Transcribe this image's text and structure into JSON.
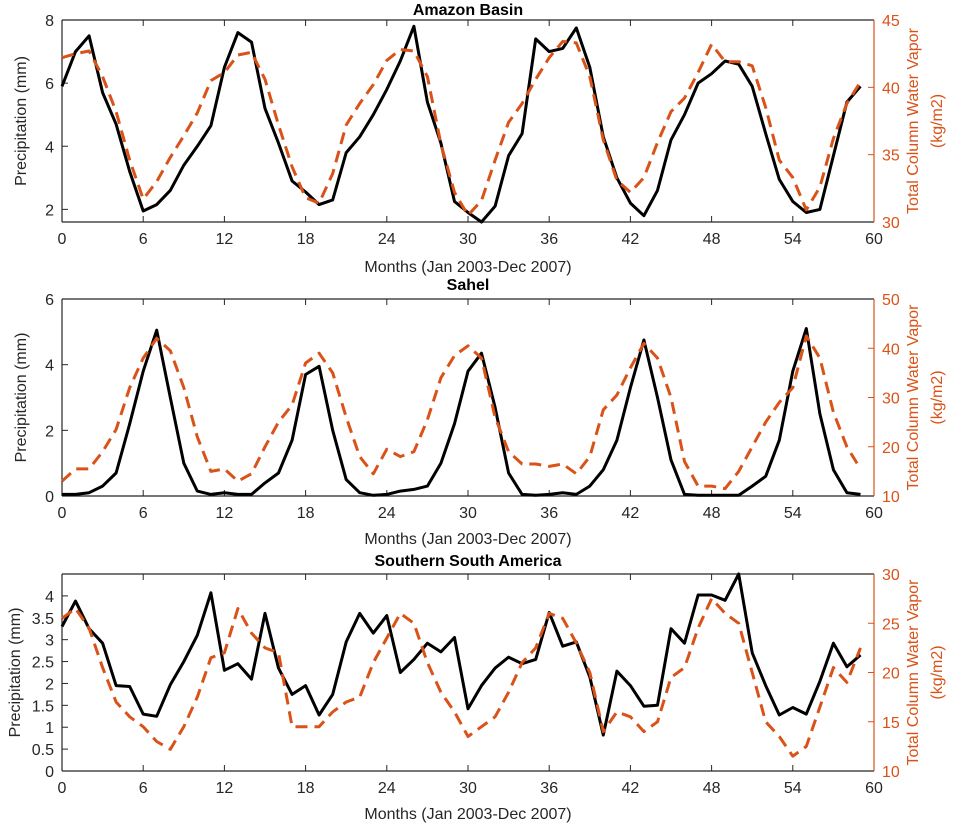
{
  "colors": {
    "precip": "#000000",
    "tcwv": "#d95319",
    "axis": "#262626"
  },
  "chart_data": [
    {
      "type": "line",
      "title": "Amazon Basin",
      "xlabel": "Months (Jan 2003-Dec 2007)",
      "ylabel": "Precipitation (mm)",
      "ylabel_right": [
        "Total Column Water Vapor",
        "(kg/m2)"
      ],
      "xlim": [
        0,
        60
      ],
      "ylim": [
        1.6,
        8
      ],
      "ylim_right": [
        30,
        45
      ],
      "xticks": [
        0,
        6,
        12,
        18,
        24,
        30,
        36,
        42,
        48,
        54,
        60
      ],
      "yticks": [
        2,
        4,
        6,
        8
      ],
      "yticks_right": [
        30,
        35,
        40,
        45
      ],
      "x": [
        0,
        1,
        2,
        3,
        4,
        5,
        6,
        7,
        8,
        9,
        10,
        11,
        12,
        13,
        14,
        15,
        16,
        17,
        18,
        19,
        20,
        21,
        22,
        23,
        24,
        25,
        26,
        27,
        28,
        29,
        30,
        31,
        32,
        33,
        34,
        35,
        36,
        37,
        38,
        39,
        40,
        41,
        42,
        43,
        44,
        45,
        46,
        47,
        48,
        49,
        50,
        51,
        52,
        53,
        54,
        55,
        56,
        57,
        58,
        59
      ],
      "series": [
        {
          "name": "Precipitation (mm)",
          "axis": "left",
          "style": "solid",
          "values": [
            5.9,
            7.0,
            7.5,
            5.7,
            4.7,
            3.2,
            1.95,
            2.15,
            2.6,
            3.4,
            4.0,
            4.65,
            6.5,
            7.6,
            7.3,
            5.2,
            4.1,
            2.9,
            2.55,
            2.15,
            2.3,
            3.8,
            4.3,
            5.0,
            5.8,
            6.7,
            7.8,
            5.4,
            4.1,
            2.25,
            1.9,
            1.6,
            2.1,
            3.7,
            4.4,
            7.4,
            7.0,
            7.1,
            7.75,
            6.5,
            4.3,
            3.0,
            2.2,
            1.8,
            2.6,
            4.2,
            5.0,
            6.0,
            6.3,
            6.7,
            6.6,
            5.9,
            4.4,
            2.95,
            2.25,
            1.9,
            2.0,
            3.7,
            5.4,
            5.9
          ]
        },
        {
          "name": "Total Column Water Vapor (kg/m2)",
          "axis": "right",
          "style": "dashed",
          "values": [
            42.2,
            42.5,
            42.7,
            40.8,
            38.2,
            34.6,
            31.7,
            33.0,
            34.8,
            36.4,
            38.1,
            40.5,
            41.1,
            42.4,
            42.6,
            40.6,
            37.2,
            34.1,
            31.8,
            31.4,
            33.6,
            37.2,
            38.8,
            40.2,
            42.0,
            42.8,
            42.7,
            40.8,
            35.8,
            32.2,
            30.5,
            31.6,
            34.6,
            37.4,
            38.8,
            40.6,
            42.2,
            43.4,
            43.3,
            40.8,
            36.1,
            33.1,
            32.2,
            33.3,
            35.9,
            38.2,
            39.2,
            41.1,
            43.2,
            41.9,
            41.9,
            41.6,
            38.5,
            34.6,
            33.3,
            30.9,
            32.6,
            36.2,
            38.8,
            40.4
          ]
        }
      ]
    },
    {
      "type": "line",
      "title": "Sahel",
      "xlabel": "Months (Jan 2003-Dec 2007)",
      "ylabel": "Precipitation (mm)",
      "ylabel_right": [
        "Total Column Water Vapor",
        "(kg/m2)"
      ],
      "xlim": [
        0,
        60
      ],
      "ylim": [
        0,
        6
      ],
      "ylim_right": [
        10,
        50
      ],
      "xticks": [
        0,
        6,
        12,
        18,
        24,
        30,
        36,
        42,
        48,
        54,
        60
      ],
      "yticks": [
        0,
        2,
        4,
        6
      ],
      "yticks_right": [
        10,
        20,
        30,
        40,
        50
      ],
      "x": [
        0,
        1,
        2,
        3,
        4,
        5,
        6,
        7,
        8,
        9,
        10,
        11,
        12,
        13,
        14,
        15,
        16,
        17,
        18,
        19,
        20,
        21,
        22,
        23,
        24,
        25,
        26,
        27,
        28,
        29,
        30,
        31,
        32,
        33,
        34,
        35,
        36,
        37,
        38,
        39,
        40,
        41,
        42,
        43,
        44,
        45,
        46,
        47,
        48,
        49,
        50,
        51,
        52,
        53,
        54,
        55,
        56,
        57,
        58,
        59
      ],
      "series": [
        {
          "name": "Precipitation (mm)",
          "axis": "left",
          "style": "solid",
          "values": [
            0.05,
            0.05,
            0.1,
            0.3,
            0.7,
            2.2,
            3.8,
            5.05,
            3.0,
            1.0,
            0.15,
            0.05,
            0.1,
            0.05,
            0.05,
            0.4,
            0.7,
            1.7,
            3.7,
            3.95,
            2.0,
            0.5,
            0.1,
            0.02,
            0.05,
            0.15,
            0.2,
            0.3,
            1.0,
            2.2,
            3.8,
            4.35,
            2.7,
            0.7,
            0.05,
            0.02,
            0.05,
            0.1,
            0.05,
            0.3,
            0.8,
            1.7,
            3.3,
            4.75,
            3.0,
            1.1,
            0.05,
            0.02,
            0.02,
            0.02,
            0.02,
            0.3,
            0.6,
            1.7,
            3.8,
            5.1,
            2.5,
            0.8,
            0.1,
            0.05
          ]
        },
        {
          "name": "Total Column Water Vapor (kg/m2)",
          "axis": "right",
          "style": "dashed",
          "values": [
            13.0,
            15.5,
            15.5,
            19.0,
            23.5,
            32.0,
            38.0,
            42.0,
            39.5,
            32.0,
            22.0,
            15.0,
            15.5,
            13.0,
            14.5,
            20.0,
            25.0,
            28.5,
            37.0,
            39.0,
            35.0,
            26.0,
            18.0,
            14.5,
            19.5,
            18.0,
            19.0,
            25.5,
            34.0,
            38.5,
            40.5,
            38.0,
            26.0,
            19.0,
            16.5,
            16.5,
            16.0,
            16.5,
            14.5,
            18.0,
            27.5,
            30.5,
            36.0,
            41.0,
            38.0,
            30.0,
            17.0,
            12.0,
            12.0,
            11.5,
            15.0,
            20.0,
            25.0,
            29.0,
            32.0,
            42.5,
            38.0,
            27.0,
            20.0,
            15.5
          ]
        }
      ]
    },
    {
      "type": "line",
      "title": "Southern South America",
      "xlabel": "Months (Jan 2003-Dec 2007)",
      "ylabel": "Precipitation (mm)",
      "ylabel_right": [
        "Total Column Water Vapor",
        "(kg/m2)"
      ],
      "xlim": [
        0,
        60
      ],
      "ylim": [
        0,
        4.5
      ],
      "ylim_right": [
        10,
        30
      ],
      "xticks": [
        0,
        6,
        12,
        18,
        24,
        30,
        36,
        42,
        48,
        54,
        60
      ],
      "yticks": [
        0,
        0.5,
        1,
        1.5,
        2,
        2.5,
        3,
        3.5,
        4
      ],
      "yticks_right": [
        10,
        15,
        20,
        25,
        30
      ],
      "x": [
        0,
        1,
        2,
        3,
        4,
        5,
        6,
        7,
        8,
        9,
        10,
        11,
        12,
        13,
        14,
        15,
        16,
        17,
        18,
        19,
        20,
        21,
        22,
        23,
        24,
        25,
        26,
        27,
        28,
        29,
        30,
        31,
        32,
        33,
        34,
        35,
        36,
        37,
        38,
        39,
        40,
        41,
        42,
        43,
        44,
        45,
        46,
        47,
        48,
        49,
        50,
        51,
        52,
        53,
        54,
        55,
        56,
        57,
        58,
        59
      ],
      "series": [
        {
          "name": "Precipitation (mm)",
          "axis": "left",
          "style": "solid",
          "values": [
            3.3,
            3.88,
            3.25,
            2.92,
            1.95,
            1.93,
            1.3,
            1.25,
            1.97,
            2.5,
            3.1,
            4.07,
            2.3,
            2.45,
            2.1,
            3.6,
            2.35,
            1.75,
            1.95,
            1.28,
            1.75,
            2.95,
            3.6,
            3.15,
            3.55,
            2.25,
            2.55,
            2.92,
            2.72,
            3.05,
            1.42,
            1.95,
            2.35,
            2.6,
            2.45,
            2.55,
            3.62,
            2.85,
            2.95,
            2.15,
            0.82,
            2.28,
            1.95,
            1.48,
            1.5,
            3.25,
            2.92,
            4.02,
            4.02,
            3.9,
            4.5,
            2.7,
            1.95,
            1.28,
            1.45,
            1.3,
            2.05,
            2.92,
            2.38,
            2.65
          ]
        },
        {
          "name": "Total Column Water Vapor (kg/m2)",
          "axis": "right",
          "style": "dashed",
          "values": [
            25.5,
            26.5,
            24.5,
            20.5,
            17.0,
            15.5,
            14.5,
            13.0,
            12.2,
            14.5,
            17.5,
            21.5,
            22.0,
            26.5,
            24.0,
            22.5,
            22.0,
            14.5,
            14.5,
            14.5,
            16.0,
            17.0,
            17.5,
            21.0,
            23.5,
            26.0,
            25.0,
            21.0,
            18.0,
            16.0,
            13.5,
            14.5,
            15.5,
            18.0,
            21.0,
            22.5,
            26.0,
            25.5,
            23.0,
            20.0,
            14.0,
            16.0,
            15.5,
            14.0,
            15.0,
            19.5,
            20.5,
            24.5,
            27.5,
            26.0,
            25.0,
            20.0,
            15.0,
            13.5,
            11.5,
            12.5,
            16.5,
            20.5,
            19.0,
            22.5
          ]
        }
      ]
    }
  ]
}
